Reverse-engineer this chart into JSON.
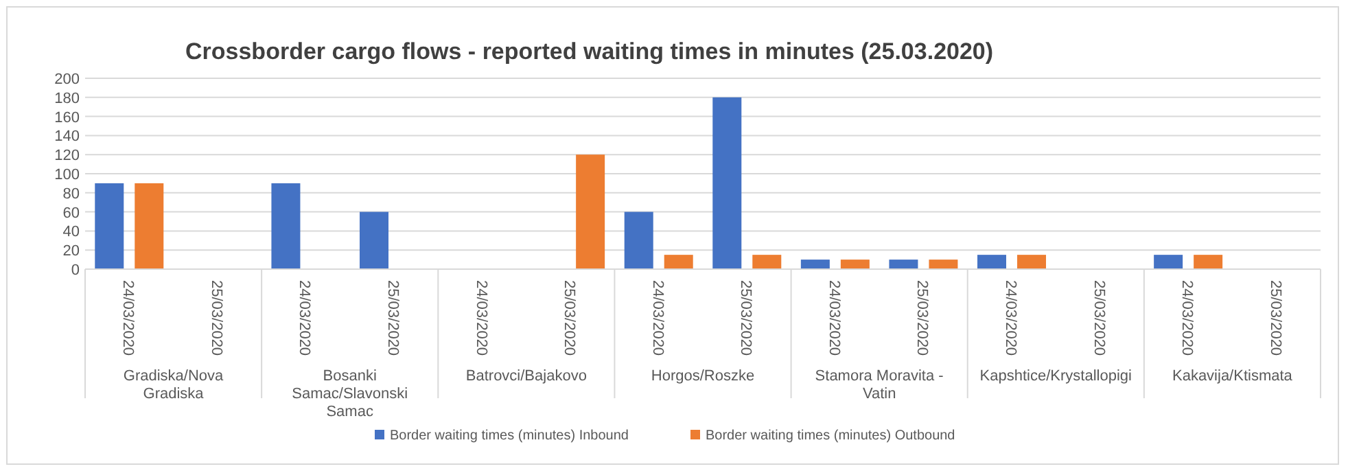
{
  "chart_data": {
    "type": "bar",
    "title": "Crossborder cargo flows - reported waiting times in minutes (25.03.2020)",
    "categories": [
      "24/03/2020",
      "25/03/2020",
      "24/03/2020",
      "25/03/2020",
      "24/03/2020",
      "25/03/2020",
      "24/03/2020",
      "25/03/2020",
      "24/03/2020",
      "25/03/2020",
      "24/03/2020",
      "25/03/2020",
      "24/03/2020",
      "25/03/2020"
    ],
    "series": [
      {
        "name": "Border waiting times (minutes) Inbound",
        "color": "#4472c4",
        "values": [
          90,
          null,
          90,
          60,
          null,
          null,
          60,
          180,
          10,
          10,
          15,
          null,
          15,
          null
        ]
      },
      {
        "name": "Border waiting times (minutes) Outbound",
        "color": "#ed7d31",
        "values": [
          90,
          null,
          null,
          null,
          null,
          120,
          15,
          15,
          10,
          10,
          15,
          null,
          15,
          null
        ]
      }
    ],
    "annotations": [
      "Gradiska/Nova Gradiska",
      "Bosanki Samac/Slavonski Samac",
      "Batrovci/Bajakovo",
      "Horgos/Roszke",
      "Stamora Moravita - Vatin",
      "Kapshtice/Krystallopigi",
      "Kakavija/Ktismata"
    ],
    "ylim": [
      0,
      200
    ],
    "yticks": [
      0,
      20,
      40,
      60,
      80,
      100,
      120,
      140,
      160,
      180,
      200
    ],
    "grid": "y",
    "legend": "bottom"
  }
}
